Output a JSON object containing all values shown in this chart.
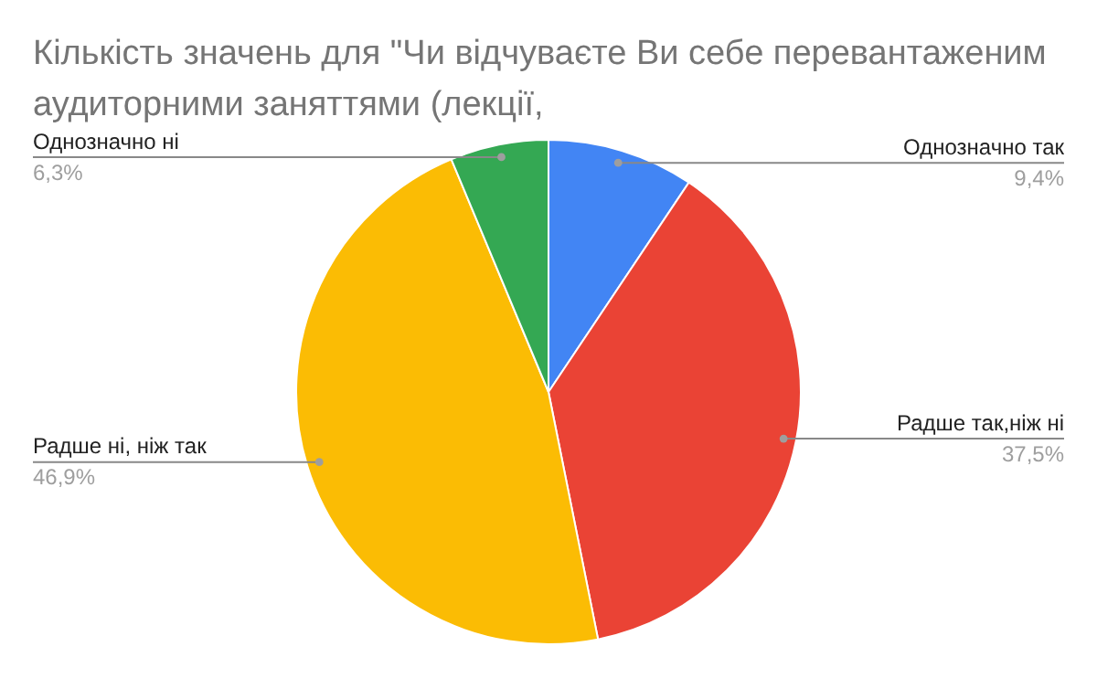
{
  "chart_data": {
    "type": "pie",
    "title": "Кількість значень для \"Чи відчуваєте Ви себе перевантаженим аудиторними заняттями (лекції,",
    "categories": [
      "Однозначно так",
      "Радше так,ніж ні",
      "Радше ні, ніж так",
      "Однозначно ні"
    ],
    "values": [
      9.4,
      37.5,
      46.9,
      6.3
    ],
    "value_labels": [
      "9,4%",
      "37,5%",
      "46,9%",
      "6,3%"
    ],
    "colors": [
      "#4285f4",
      "#ea4335",
      "#fbbc04",
      "#34a853"
    ],
    "legend": false
  }
}
